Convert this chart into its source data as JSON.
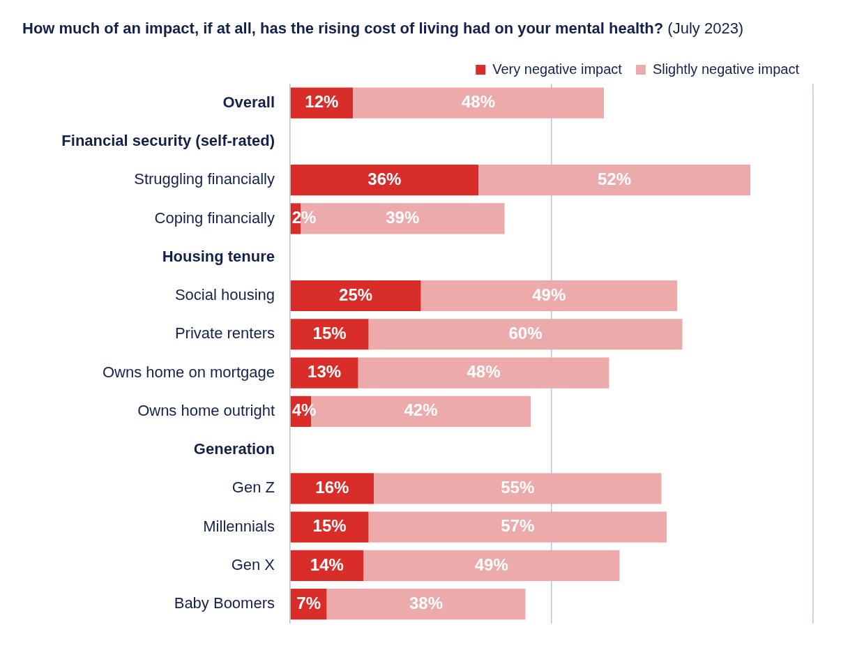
{
  "chart_data": {
    "type": "bar",
    "orientation": "horizontal",
    "stacked": true,
    "title": "How much of an impact, if at all, has the rising cost of living had on your mental health?",
    "subtitle": "(July 2023)",
    "categories": [
      "Overall",
      "Financial security (self-rated)",
      "Struggling financially",
      "Coping financially",
      "Housing tenure",
      "Social housing",
      "Private renters",
      "Owns home on mortgage",
      "Owns home outright",
      "Generation",
      "Gen Z",
      "Millennials",
      "Gen X",
      "Baby Boomers"
    ],
    "series": [
      {
        "name": "Very negative impact",
        "color": "#d92d2a",
        "values": [
          12,
          null,
          36,
          2,
          null,
          25,
          15,
          13,
          4,
          null,
          16,
          15,
          14,
          7
        ],
        "value_labels": [
          "12%",
          null,
          "36%",
          "2%",
          null,
          "25%",
          "15%",
          "13%",
          "4%",
          null,
          "16%",
          "15%",
          "14%",
          "7%"
        ]
      },
      {
        "name": "Slightly negative impact",
        "color": "#ecaaaa",
        "values": [
          48,
          null,
          52,
          39,
          null,
          49,
          60,
          48,
          42,
          null,
          55,
          57,
          49,
          38
        ],
        "value_labels": [
          "48%",
          null,
          "52%",
          "39%",
          null,
          "49%",
          "60%",
          "48%",
          "42%",
          null,
          "55%",
          "57%",
          "49%",
          "38%"
        ]
      }
    ],
    "xlim": [
      0,
      100
    ],
    "xticks": [
      {
        "value": 0,
        "label": null
      },
      {
        "value": 50,
        "label": null
      },
      {
        "value": 100,
        "label": null
      }
    ],
    "tick_labels": "y",
    "grid": "x",
    "legend": "top right"
  }
}
